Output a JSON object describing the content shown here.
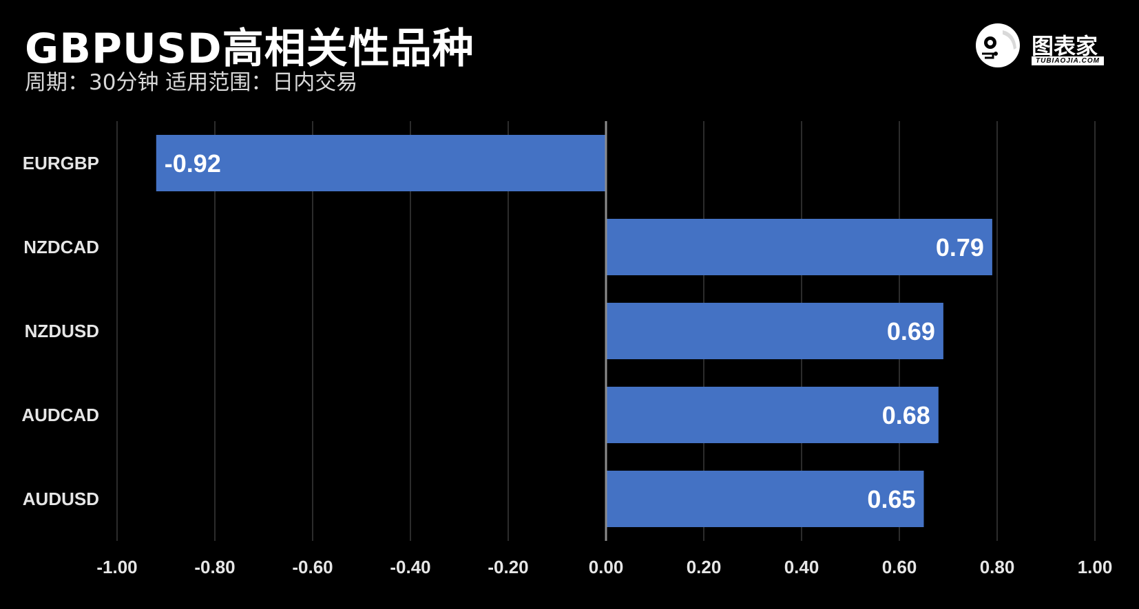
{
  "header": {
    "title": "GBPUSD高相关性品种",
    "subtitle": "周期：30分钟  适用范围：日内交易"
  },
  "logo": {
    "name": "图表家",
    "sub": "TUBIAOJIA.COM",
    "icon": "robot-head-icon"
  },
  "colors": {
    "background": "#000000",
    "bar": "#4472c4",
    "grid": "#3a3a3a",
    "axis": "#8c8c8c",
    "text": "#ffffff"
  },
  "chart_data": {
    "type": "bar",
    "orientation": "horizontal",
    "categories": [
      "EURGBP",
      "NZDCAD",
      "NZDUSD",
      "AUDCAD",
      "AUDUSD"
    ],
    "values": [
      -0.92,
      0.79,
      0.69,
      0.68,
      0.65
    ],
    "value_labels": [
      "-0.92",
      "0.79",
      "0.69",
      "0.68",
      "0.65"
    ],
    "xlim": [
      -1.0,
      1.0
    ],
    "xticks": [
      -1.0,
      -0.8,
      -0.6,
      -0.4,
      -0.2,
      0.0,
      0.2,
      0.4,
      0.6,
      0.8,
      1.0
    ],
    "xtick_labels": [
      "-1.00",
      "-0.80",
      "-0.60",
      "-0.40",
      "-0.20",
      "0.00",
      "0.20",
      "0.40",
      "0.60",
      "0.80",
      "1.00"
    ],
    "grid": true,
    "legend": "none"
  }
}
